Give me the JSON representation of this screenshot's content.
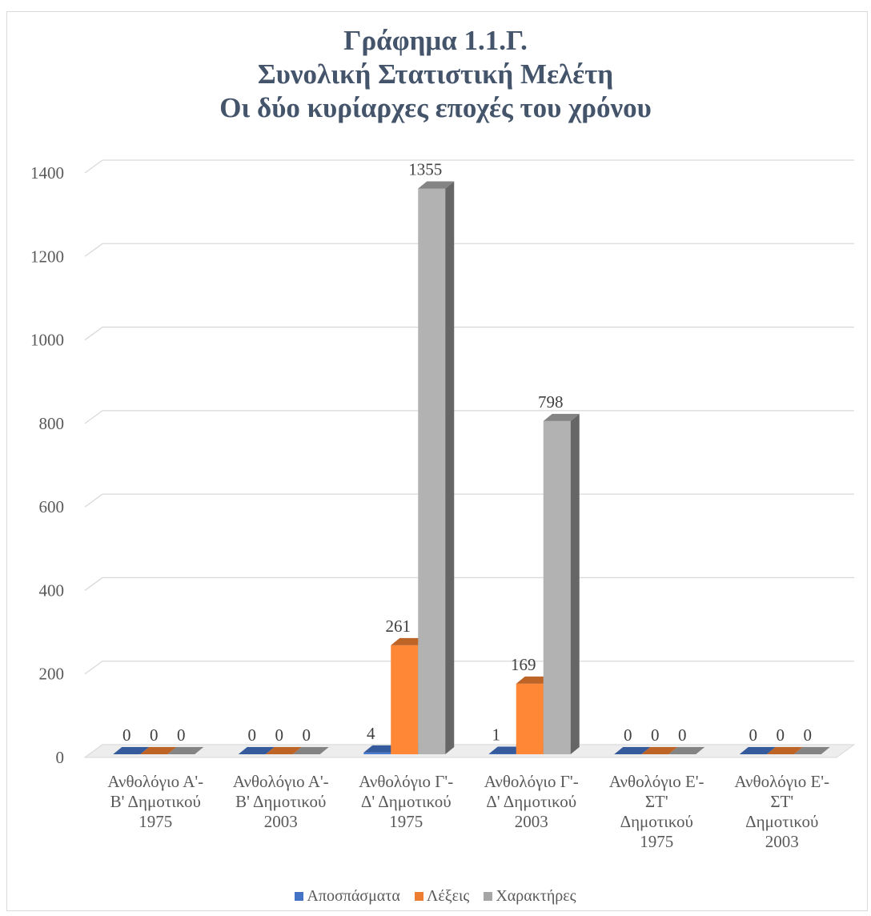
{
  "chart_data": {
    "type": "bar",
    "title_lines": [
      "Γράφημα 1.1.Γ.",
      "Συνολική Στατιστική Μελέτη",
      "Οι δύο κυρίαρχες εποχές του χρόνου"
    ],
    "categories": [
      [
        "Ανθολόγιο Α'-",
        "Β' Δημοτικού",
        "1975"
      ],
      [
        "Ανθολόγιο Α'-",
        "Β' Δημοτικού",
        "2003"
      ],
      [
        "Ανθολόγιο Γ'-",
        "Δ' Δημοτικού",
        "1975"
      ],
      [
        "Ανθολόγιο Γ'-",
        "Δ' Δημοτικού",
        "2003"
      ],
      [
        "Ανθολόγιο Ε'-",
        "ΣΤ'",
        "Δημοτικού",
        "1975"
      ],
      [
        "Ανθολόγιο Ε'-",
        "ΣΤ'",
        "Δημοτικού",
        "2003"
      ]
    ],
    "series": [
      {
        "name": "Αποσπάσματα",
        "values": [
          0,
          0,
          4,
          1,
          0,
          0
        ],
        "color": "#4472c4"
      },
      {
        "name": "Λέξεις",
        "values": [
          0,
          0,
          261,
          169,
          0,
          0
        ],
        "color": "#ed7d31"
      },
      {
        "name": "Χαρακτήρες",
        "values": [
          0,
          0,
          1355,
          798,
          0,
          0
        ],
        "color": "#a5a5a5"
      }
    ],
    "ylim": [
      0,
      1400
    ],
    "yticks": [
      0,
      200,
      400,
      600,
      800,
      1000,
      1200,
      1400
    ],
    "grid": true,
    "legend_position": "bottom"
  }
}
